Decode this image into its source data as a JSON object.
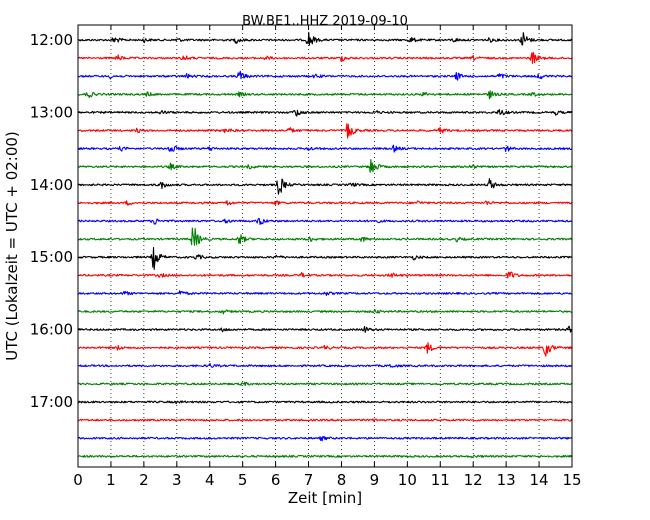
{
  "chart_data": {
    "type": "line",
    "title": "BW.BE1..HHZ 2019-09-10",
    "xlabel": "Zeit  [min]",
    "ylabel": "UTC (Lokalzeit = UTC + 02:00)",
    "xlim": [
      0,
      15
    ],
    "x_ticks": [
      "0",
      "1",
      "2",
      "3",
      "4",
      "5",
      "6",
      "7",
      "8",
      "9",
      "10",
      "11",
      "12",
      "13",
      "14",
      "15"
    ],
    "y_ticks": [
      {
        "label": "12:00",
        "row": 0
      },
      {
        "label": "13:00",
        "row": 4
      },
      {
        "label": "14:00",
        "row": 8
      },
      {
        "label": "15:00",
        "row": 12
      },
      {
        "label": "16:00",
        "row": 16
      },
      {
        "label": "17:00",
        "row": 20
      }
    ],
    "row_interval_min": 15,
    "grid": "vertical dotted",
    "series_colors": [
      "#000000",
      "#ff0000",
      "#0000ff",
      "#008000"
    ],
    "traces": [
      {
        "start": "12:00",
        "color": "#000000",
        "events": [
          [
            1.1,
            0.4
          ],
          [
            2.0,
            0.2
          ],
          [
            3.0,
            0.2
          ],
          [
            4.8,
            0.3
          ],
          [
            7.0,
            1.0
          ],
          [
            10.1,
            0.3
          ],
          [
            11.4,
            0.2
          ],
          [
            12.5,
            0.2
          ],
          [
            13.5,
            0.9
          ]
        ]
      },
      {
        "start": "12:15",
        "color": "#ff0000",
        "events": [
          [
            1.2,
            0.3
          ],
          [
            3.2,
            0.3
          ],
          [
            5.7,
            0.2
          ],
          [
            8.0,
            0.3
          ],
          [
            12.0,
            0.2
          ],
          [
            13.8,
            0.7
          ]
        ]
      },
      {
        "start": "12:30",
        "color": "#0000ff",
        "events": [
          [
            1.0,
            0.2
          ],
          [
            3.3,
            0.2
          ],
          [
            4.9,
            0.6
          ],
          [
            7.2,
            0.2
          ],
          [
            11.5,
            0.4
          ],
          [
            12.8,
            0.3
          ],
          [
            14.0,
            0.3
          ]
        ]
      },
      {
        "start": "12:45",
        "color": "#008000",
        "events": [
          [
            0.3,
            0.4
          ],
          [
            2.1,
            0.2
          ],
          [
            4.9,
            0.2
          ],
          [
            10.5,
            0.2
          ],
          [
            12.5,
            0.4
          ],
          [
            13.8,
            0.2
          ]
        ]
      },
      {
        "start": "13:00",
        "color": "#000000",
        "events": [
          [
            2.5,
            0.2
          ],
          [
            6.6,
            0.5
          ],
          [
            9.0,
            0.2
          ],
          [
            12.8,
            0.4
          ],
          [
            14.5,
            0.2
          ]
        ]
      },
      {
        "start": "13:15",
        "color": "#ff0000",
        "events": [
          [
            1.8,
            0.2
          ],
          [
            4.5,
            0.3
          ],
          [
            6.4,
            0.3
          ],
          [
            8.2,
            1.0
          ],
          [
            11.0,
            0.3
          ]
        ]
      },
      {
        "start": "13:30",
        "color": "#0000ff",
        "events": [
          [
            1.3,
            0.2
          ],
          [
            2.8,
            0.6
          ],
          [
            4.0,
            0.2
          ],
          [
            7.0,
            0.2
          ],
          [
            9.6,
            0.3
          ],
          [
            13.0,
            0.3
          ]
        ]
      },
      {
        "start": "13:45",
        "color": "#008000",
        "events": [
          [
            2.8,
            0.3
          ],
          [
            5.2,
            0.2
          ],
          [
            8.9,
            1.0
          ],
          [
            11.9,
            0.3
          ]
        ]
      },
      {
        "start": "14:00",
        "color": "#000000",
        "events": [
          [
            2.5,
            0.5
          ],
          [
            6.1,
            1.2
          ],
          [
            8.3,
            0.2
          ],
          [
            12.5,
            0.6
          ]
        ]
      },
      {
        "start": "14:15",
        "color": "#ff0000",
        "events": [
          [
            1.5,
            0.2
          ],
          [
            4.5,
            0.3
          ],
          [
            6.0,
            0.2
          ],
          [
            10.3,
            0.2
          ],
          [
            12.4,
            0.2
          ]
        ]
      },
      {
        "start": "14:30",
        "color": "#0000ff",
        "events": [
          [
            2.3,
            0.4
          ],
          [
            4.5,
            0.2
          ],
          [
            5.5,
            0.5
          ],
          [
            9.0,
            0.2
          ]
        ]
      },
      {
        "start": "14:45",
        "color": "#008000",
        "events": [
          [
            3.5,
            1.6
          ],
          [
            4.9,
            0.6
          ],
          [
            7.0,
            0.3
          ],
          [
            8.6,
            0.3
          ],
          [
            11.5,
            0.2
          ]
        ]
      },
      {
        "start": "15:00",
        "color": "#000000",
        "events": [
          [
            2.3,
            1.3
          ],
          [
            3.6,
            0.3
          ],
          [
            6.0,
            0.2
          ],
          [
            10.2,
            0.2
          ]
        ]
      },
      {
        "start": "15:15",
        "color": "#ff0000",
        "events": [
          [
            2.5,
            0.2
          ],
          [
            6.8,
            0.2
          ],
          [
            9.5,
            0.3
          ],
          [
            13.1,
            0.5
          ]
        ]
      },
      {
        "start": "15:30",
        "color": "#0000ff",
        "events": [
          [
            1.4,
            0.2
          ],
          [
            3.1,
            0.3
          ],
          [
            7.5,
            0.2
          ]
        ]
      },
      {
        "start": "15:45",
        "color": "#008000",
        "events": [
          [
            4.4,
            0.2
          ],
          [
            9.0,
            0.2
          ]
        ]
      },
      {
        "start": "16:00",
        "color": "#000000",
        "events": [
          [
            4.4,
            0.2
          ],
          [
            8.7,
            0.3
          ],
          [
            14.9,
            0.3
          ]
        ]
      },
      {
        "start": "16:15",
        "color": "#ff0000",
        "events": [
          [
            1.2,
            0.2
          ],
          [
            7.5,
            0.2
          ],
          [
            10.6,
            0.6
          ],
          [
            14.2,
            1.0
          ]
        ]
      },
      {
        "start": "16:30",
        "color": "#0000ff",
        "events": [
          [
            4.0,
            0.2
          ],
          [
            9.5,
            0.2
          ]
        ]
      },
      {
        "start": "16:45",
        "color": "#008000",
        "events": [
          [
            5.0,
            0.2
          ]
        ]
      },
      {
        "start": "17:00",
        "color": "#000000",
        "events": [
          [
            3.0,
            0.1
          ]
        ]
      },
      {
        "start": "17:15",
        "color": "#ff0000",
        "events": [
          [
            9.0,
            0.1
          ]
        ]
      },
      {
        "start": "17:30",
        "color": "#0000ff",
        "events": [
          [
            7.4,
            0.2
          ]
        ]
      },
      {
        "start": "17:45",
        "color": "#008000",
        "events": [
          [
            12.0,
            0.1
          ]
        ]
      }
    ]
  }
}
